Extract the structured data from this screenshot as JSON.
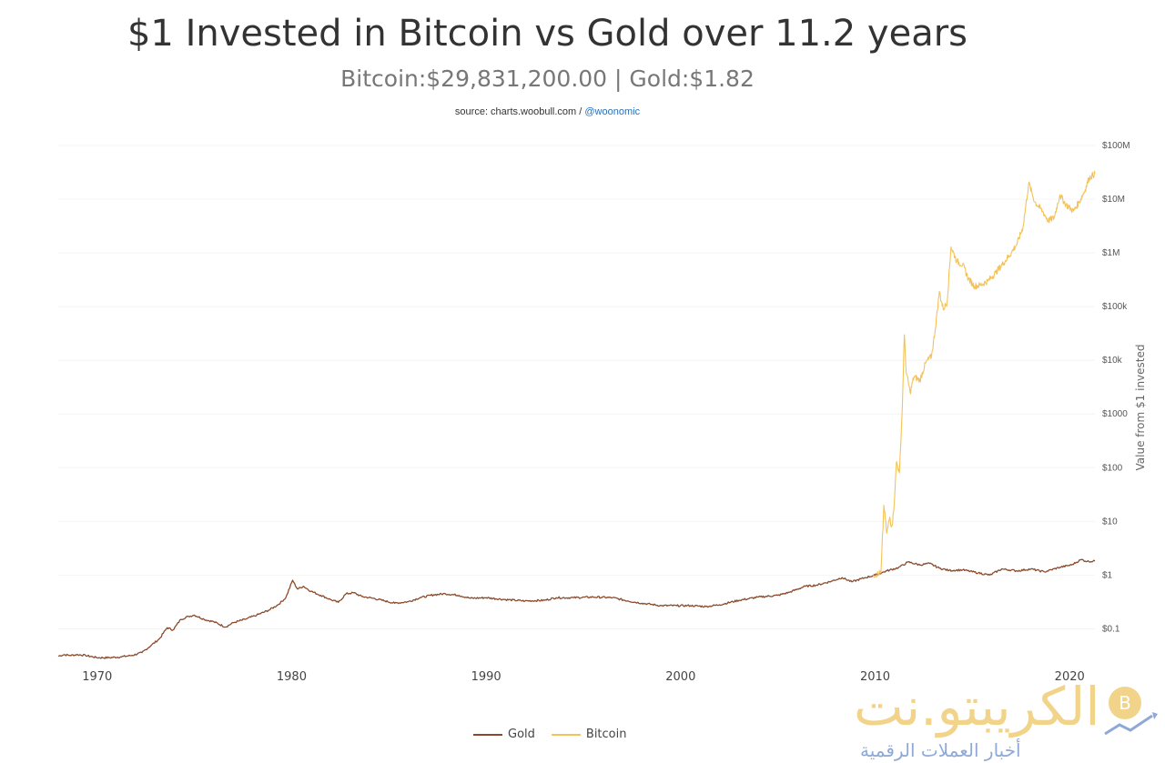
{
  "header": {
    "title": "$1 Invested in Bitcoin vs Gold over 11.2 years",
    "subtitle": "Bitcoin:$29,831,200.00 | Gold:$1.82",
    "source_prefix": "source: charts.woobull.com /",
    "source_handle": "@woonomic"
  },
  "chart_data": {
    "type": "line",
    "title": "$1 Invested in Bitcoin vs Gold over 11.2 years",
    "subtitle": "Bitcoin:$29,831,200.00 | Gold:$1.82",
    "xlabel": "",
    "ylabel": "Value from $1 invested",
    "y_scale": "log",
    "ylim": [
      0.025,
      100000000
    ],
    "xlim": [
      1968.0,
      2021.3
    ],
    "x_ticks": [
      1970,
      1980,
      1990,
      2000,
      2010,
      2020
    ],
    "y_ticks": [
      {
        "value": 0.1,
        "label": "$0.1"
      },
      {
        "value": 1,
        "label": "$1"
      },
      {
        "value": 10,
        "label": "$10"
      },
      {
        "value": 100,
        "label": "$100"
      },
      {
        "value": 1000,
        "label": "$1000"
      },
      {
        "value": 10000,
        "label": "$10k"
      },
      {
        "value": 100000,
        "label": "$100k"
      },
      {
        "value": 1000000,
        "label": "$1M"
      },
      {
        "value": 10000000,
        "label": "$10M"
      },
      {
        "value": 100000000,
        "label": "$100M"
      }
    ],
    "legend_position": "bottom-center",
    "series": [
      {
        "name": "Gold",
        "color": "#8b4a2b",
        "points": [
          [
            1968.0,
            0.031
          ],
          [
            1968.3,
            0.033
          ],
          [
            1968.6,
            0.032
          ],
          [
            1969.0,
            0.033
          ],
          [
            1969.4,
            0.032
          ],
          [
            1970.0,
            0.029
          ],
          [
            1970.6,
            0.029
          ],
          [
            1971.2,
            0.03
          ],
          [
            1971.8,
            0.032
          ],
          [
            1972.3,
            0.036
          ],
          [
            1972.8,
            0.05
          ],
          [
            1973.2,
            0.065
          ],
          [
            1973.6,
            0.105
          ],
          [
            1973.9,
            0.095
          ],
          [
            1974.3,
            0.15
          ],
          [
            1974.7,
            0.17
          ],
          [
            1975.0,
            0.18
          ],
          [
            1975.5,
            0.15
          ],
          [
            1976.0,
            0.135
          ],
          [
            1976.6,
            0.108
          ],
          [
            1977.0,
            0.13
          ],
          [
            1977.6,
            0.15
          ],
          [
            1978.2,
            0.18
          ],
          [
            1978.8,
            0.22
          ],
          [
            1979.3,
            0.28
          ],
          [
            1979.7,
            0.38
          ],
          [
            1980.05,
            0.8
          ],
          [
            1980.3,
            0.55
          ],
          [
            1980.6,
            0.62
          ],
          [
            1981.0,
            0.5
          ],
          [
            1981.5,
            0.42
          ],
          [
            1982.0,
            0.35
          ],
          [
            1982.4,
            0.31
          ],
          [
            1982.8,
            0.45
          ],
          [
            1983.2,
            0.47
          ],
          [
            1983.6,
            0.4
          ],
          [
            1984.2,
            0.37
          ],
          [
            1984.8,
            0.33
          ],
          [
            1985.3,
            0.3
          ],
          [
            1986.0,
            0.32
          ],
          [
            1986.6,
            0.38
          ],
          [
            1987.3,
            0.43
          ],
          [
            1987.9,
            0.45
          ],
          [
            1988.6,
            0.42
          ],
          [
            1989.2,
            0.37
          ],
          [
            1990.0,
            0.38
          ],
          [
            1991.0,
            0.35
          ],
          [
            1992.0,
            0.33
          ],
          [
            1993.0,
            0.34
          ],
          [
            1993.6,
            0.38
          ],
          [
            1994.5,
            0.38
          ],
          [
            1995.5,
            0.39
          ],
          [
            1996.5,
            0.38
          ],
          [
            1997.3,
            0.33
          ],
          [
            1998.0,
            0.3
          ],
          [
            1999.0,
            0.27
          ],
          [
            1999.8,
            0.27
          ],
          [
            2000.5,
            0.27
          ],
          [
            2001.3,
            0.26
          ],
          [
            2002.0,
            0.28
          ],
          [
            2003.0,
            0.34
          ],
          [
            2004.0,
            0.39
          ],
          [
            2005.0,
            0.42
          ],
          [
            2005.6,
            0.48
          ],
          [
            2006.4,
            0.62
          ],
          [
            2007.0,
            0.65
          ],
          [
            2007.8,
            0.78
          ],
          [
            2008.3,
            0.9
          ],
          [
            2008.8,
            0.75
          ],
          [
            2009.5,
            0.9
          ],
          [
            2010.0,
            1.0
          ],
          [
            2010.6,
            1.2
          ],
          [
            2011.2,
            1.38
          ],
          [
            2011.7,
            1.75
          ],
          [
            2012.3,
            1.55
          ],
          [
            2012.8,
            1.65
          ],
          [
            2013.3,
            1.35
          ],
          [
            2013.8,
            1.22
          ],
          [
            2014.5,
            1.25
          ],
          [
            2015.3,
            1.1
          ],
          [
            2015.9,
            1.0
          ],
          [
            2016.5,
            1.3
          ],
          [
            2017.3,
            1.2
          ],
          [
            2018.0,
            1.3
          ],
          [
            2018.7,
            1.15
          ],
          [
            2019.5,
            1.4
          ],
          [
            2020.1,
            1.55
          ],
          [
            2020.6,
            1.95
          ],
          [
            2020.9,
            1.8
          ],
          [
            2021.3,
            1.82
          ]
        ]
      },
      {
        "name": "Bitcoin",
        "color": "#f3c35a",
        "points": [
          [
            2009.9,
            1.0
          ],
          [
            2010.3,
            1.1
          ],
          [
            2010.45,
            20
          ],
          [
            2010.6,
            6
          ],
          [
            2010.75,
            12
          ],
          [
            2010.85,
            8
          ],
          [
            2010.95,
            15
          ],
          [
            2011.1,
            130
          ],
          [
            2011.25,
            80
          ],
          [
            2011.4,
            1400
          ],
          [
            2011.5,
            30000
          ],
          [
            2011.6,
            6000
          ],
          [
            2011.8,
            2500
          ],
          [
            2012.0,
            5000
          ],
          [
            2012.3,
            4200
          ],
          [
            2012.6,
            9000
          ],
          [
            2012.9,
            12000
          ],
          [
            2013.1,
            40000
          ],
          [
            2013.3,
            190000
          ],
          [
            2013.5,
            90000
          ],
          [
            2013.7,
            120000
          ],
          [
            2013.9,
            1300000
          ],
          [
            2014.2,
            700000
          ],
          [
            2014.5,
            600000
          ],
          [
            2014.8,
            330000
          ],
          [
            2015.1,
            240000
          ],
          [
            2015.4,
            250000
          ],
          [
            2015.8,
            300000
          ],
          [
            2016.2,
            430000
          ],
          [
            2016.6,
            650000
          ],
          [
            2017.0,
            1000000
          ],
          [
            2017.3,
            1500000
          ],
          [
            2017.6,
            3000000
          ],
          [
            2017.9,
            20000000
          ],
          [
            2018.2,
            9000000
          ],
          [
            2018.6,
            6000000
          ],
          [
            2018.9,
            4000000
          ],
          [
            2019.2,
            4500000
          ],
          [
            2019.5,
            12000000
          ],
          [
            2019.8,
            8000000
          ],
          [
            2020.2,
            6000000
          ],
          [
            2020.5,
            9000000
          ],
          [
            2020.8,
            15000000
          ],
          [
            2021.0,
            25000000
          ],
          [
            2021.3,
            29831200
          ]
        ]
      }
    ]
  },
  "legend": {
    "gold_label": "Gold",
    "bitcoin_label": "Bitcoin"
  },
  "watermark": {
    "brand": "الكريبتو.نت",
    "tagline": "أخبار العملات الرقمية"
  }
}
